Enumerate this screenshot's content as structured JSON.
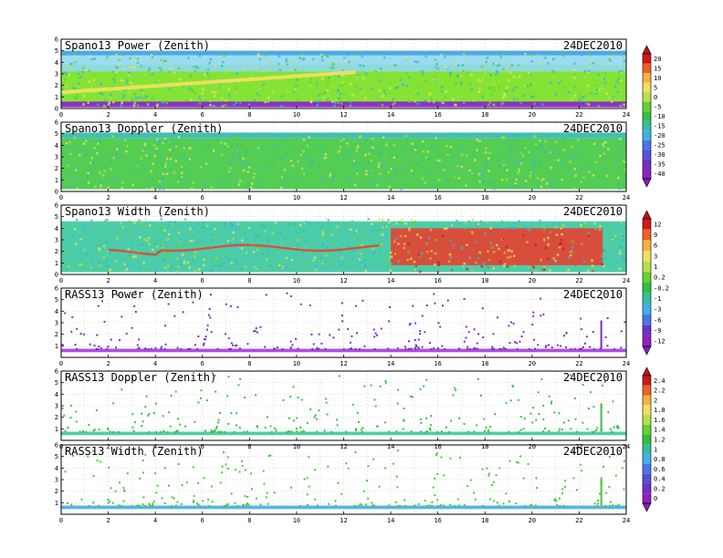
{
  "chart_data": {
    "type": "heatmap",
    "date_label": "24DEC2010",
    "x_ticks": [
      0,
      2,
      4,
      6,
      8,
      10,
      12,
      14,
      16,
      18,
      20,
      22,
      24
    ],
    "xlim": [
      0,
      24
    ],
    "ylim": [
      0,
      6
    ],
    "panels": [
      {
        "title": "Spano13 Power (Zenith)",
        "kind": "spano",
        "y_ticks": [
          0,
          1,
          2,
          3,
          4,
          5,
          6
        ],
        "colorbar": "power",
        "layers": [
          {
            "name": "background",
            "color": "#78e020",
            "x0": 0,
            "x1": 24,
            "y0": 0.3,
            "y1": 3.8
          },
          {
            "name": "upper-fill",
            "color": "#8fd8f0",
            "x0": 0,
            "x1": 24,
            "y0": 3.2,
            "y1": 4.6
          },
          {
            "name": "top-edge",
            "color": "#3aa0e0",
            "x0": 0,
            "x1": 24,
            "y0": 4.6,
            "y1": 5.0
          },
          {
            "name": "bottom-band",
            "color": "#8a20c8",
            "x0": 0,
            "x1": 24,
            "y0": 0.1,
            "y1": 0.6
          }
        ]
      },
      {
        "title": "Spano13 Doppler (Zenith)",
        "kind": "spano",
        "y_ticks": [
          0,
          1,
          2,
          3,
          4,
          5,
          6
        ],
        "colorbar": "doppler",
        "layers": [
          {
            "name": "background",
            "color": "#40c840",
            "x0": 0,
            "x1": 24,
            "y0": 0.2,
            "y1": 4.6
          },
          {
            "name": "top-edge",
            "color": "#30b8a8",
            "x0": 0,
            "x1": 24,
            "y0": 4.6,
            "y1": 5.1
          }
        ]
      },
      {
        "title": "Spano13 Width (Zenith)",
        "kind": "spano",
        "y_ticks": [
          0,
          1,
          2,
          3,
          4,
          5,
          6
        ],
        "colorbar": "width",
        "layers": [
          {
            "name": "background",
            "color": "#38c8a0",
            "x0": 0,
            "x1": 24,
            "y0": 0.2,
            "y1": 4.6
          },
          {
            "name": "hot-band",
            "color": "#e84030",
            "x0": 14,
            "x1": 23,
            "y0": 0.8,
            "y1": 4.0
          }
        ]
      },
      {
        "title": "RASS13 Power (Zenith)",
        "kind": "rass",
        "y_ticks": [
          1,
          2,
          3,
          4,
          5,
          6
        ],
        "colorbar": "rass_power",
        "band_color": "#a030d8",
        "band_y": [
          0.45,
          0.75
        ],
        "dot_color": "#7a2ec8"
      },
      {
        "title": "RASS13 Doppler (Zenith)",
        "kind": "rass",
        "y_ticks": [
          1,
          2,
          3,
          4,
          5,
          6
        ],
        "colorbar": "rass_doppler",
        "band_color": "#30c890",
        "band_y": [
          0.45,
          0.75
        ],
        "dot_color": "#3ac040"
      },
      {
        "title": "RASS13 Width (Zenith)",
        "kind": "rass",
        "y_ticks": [
          1,
          2,
          3,
          4,
          5,
          6
        ],
        "colorbar": "rass_width",
        "band_color": "#38a8e0",
        "band_y": [
          0.45,
          0.75
        ],
        "dot_color": "#48c838"
      }
    ],
    "colorbars": {
      "power": {
        "labels": [
          "20",
          "15",
          "10",
          "5",
          "0",
          "-5",
          "-10",
          "-15",
          "-20",
          "-25",
          "-30",
          "-35",
          "-40"
        ],
        "colors": [
          "#d01818",
          "#f06028",
          "#f8b040",
          "#f0e060",
          "#b8e048",
          "#68d030",
          "#30c040",
          "#30c0a0",
          "#40b0e8",
          "#4878e8",
          "#5850d8",
          "#7030c8",
          "#9020c0"
        ]
      },
      "width": {
        "labels": [
          "12",
          "9",
          "6",
          "3",
          "1",
          "0.2",
          "-0.2",
          "-1",
          "-3",
          "-6",
          "-9",
          "-12"
        ],
        "colors": [
          "#d01818",
          "#f06028",
          "#f8b040",
          "#f0e060",
          "#b8e048",
          "#68d030",
          "#30c040",
          "#30c0a0",
          "#40b0e8",
          "#4878e8",
          "#7030c8",
          "#9020c0"
        ]
      },
      "rass_doppler": {
        "labels": [
          "2.4",
          "2.2",
          "2",
          "1.8",
          "1.6",
          "1.4",
          "1.2",
          "1",
          "0.8",
          "0.6",
          "0.4",
          "0.2",
          "0"
        ],
        "colors": [
          "#d01818",
          "#f06028",
          "#f8b040",
          "#f0e060",
          "#b8e048",
          "#68d030",
          "#30c040",
          "#30c0a0",
          "#40b0e8",
          "#4878e8",
          "#5850d8",
          "#7030c8",
          "#9020c0"
        ]
      }
    }
  }
}
